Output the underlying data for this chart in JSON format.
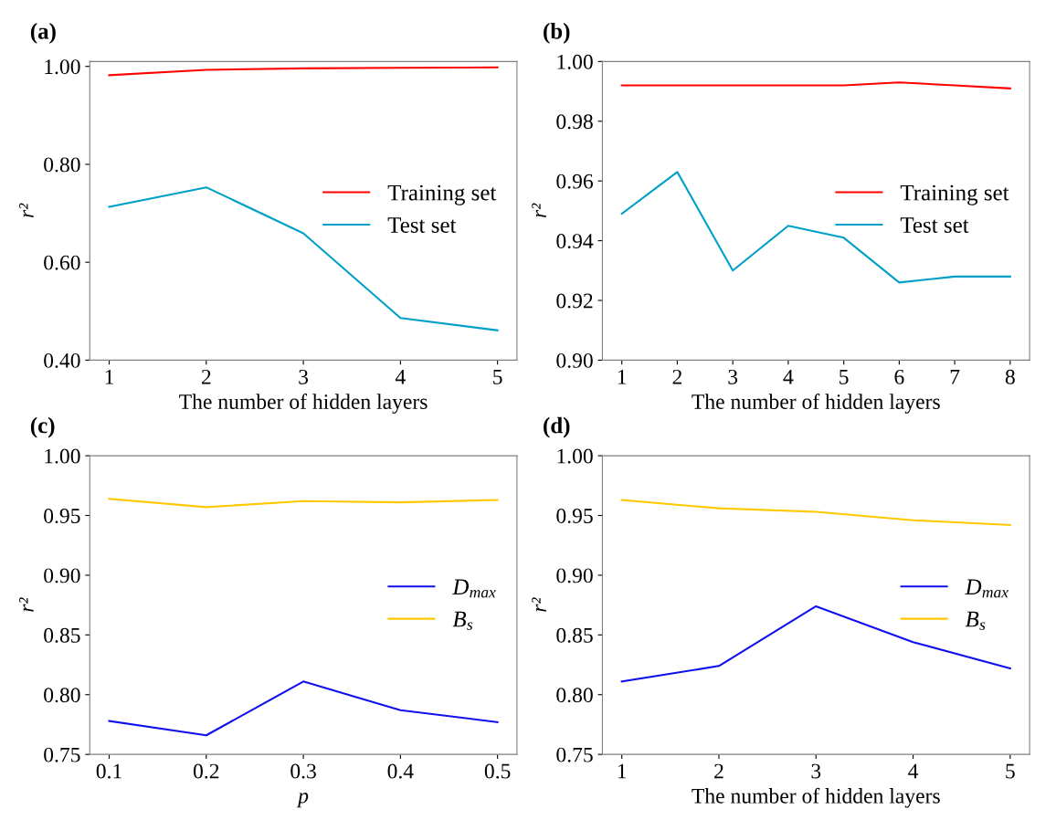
{
  "chart_data": [
    {
      "type": "line",
      "title": "(a)",
      "xlabel": "The number of hidden layers",
      "ylabel": "r²",
      "x": [
        1,
        2,
        3,
        4,
        5
      ],
      "series": [
        {
          "name": "Training set",
          "color": "#ff0000",
          "values": [
            0.982,
            0.993,
            0.996,
            0.997,
            0.998
          ]
        },
        {
          "name": "Test set",
          "color": "#00a0c8",
          "values": [
            0.713,
            0.753,
            0.659,
            0.486,
            0.461
          ]
        }
      ],
      "xlim": [
        0.8,
        5.2
      ],
      "xticks": [
        1,
        2,
        3,
        4,
        5
      ],
      "ylim": [
        0.4,
        1.01
      ],
      "yticks": [
        {
          "value": 0.4,
          "label": "0.40"
        },
        {
          "value": 0.6,
          "label": "0.60"
        },
        {
          "value": 0.8,
          "label": "0.80"
        },
        {
          "value": 1.0,
          "label": "1.00"
        }
      ],
      "legend": "right",
      "grid": false,
      "marker": "none",
      "line_style": "solid"
    },
    {
      "type": "line",
      "title": "(b)",
      "xlabel": "The number of hidden layers",
      "ylabel": "r²",
      "x": [
        1,
        2,
        3,
        4,
        5,
        6,
        7,
        8
      ],
      "series": [
        {
          "name": "Training set",
          "color": "#ff0000",
          "values": [
            0.992,
            0.992,
            0.992,
            0.992,
            0.992,
            0.993,
            0.992,
            0.991
          ]
        },
        {
          "name": "Test set",
          "color": "#00a0c8",
          "values": [
            0.949,
            0.963,
            0.93,
            0.945,
            0.941,
            0.926,
            0.928,
            0.928
          ]
        }
      ],
      "xlim": [
        0.65,
        8.35
      ],
      "xticks": [
        1,
        2,
        3,
        4,
        5,
        6,
        7,
        8
      ],
      "ylim": [
        0.9,
        1.0
      ],
      "yticks": [
        {
          "value": 0.9,
          "label": "0.90"
        },
        {
          "value": 0.92,
          "label": "0.92"
        },
        {
          "value": 0.94,
          "label": "0.94"
        },
        {
          "value": 0.96,
          "label": "0.96"
        },
        {
          "value": 0.98,
          "label": "0.98"
        },
        {
          "value": 1.0,
          "label": "1.00"
        }
      ],
      "legend": "right",
      "grid": false,
      "marker": "none",
      "line_style": "solid"
    },
    {
      "type": "line",
      "title": "(c)",
      "xlabel": "p",
      "ylabel": "r²",
      "x": [
        0.1,
        0.2,
        0.3,
        0.4,
        0.5
      ],
      "series": [
        {
          "name": "D$_{max}$",
          "color": "#1010ee",
          "values": [
            0.778,
            0.766,
            0.811,
            0.787,
            0.777
          ]
        },
        {
          "name": "B$_{s}$",
          "color": "#ffc800",
          "values": [
            0.964,
            0.957,
            0.962,
            0.961,
            0.963
          ]
        }
      ],
      "xlim": [
        0.08,
        0.52
      ],
      "xticks": [
        0.1,
        0.2,
        0.3,
        0.4,
        0.5
      ],
      "ylim": [
        0.75,
        1.0
      ],
      "yticks": [
        {
          "value": 0.75,
          "label": "0.75"
        },
        {
          "value": 0.8,
          "label": "0.80"
        },
        {
          "value": 0.85,
          "label": "0.85"
        },
        {
          "value": 0.9,
          "label": "0.90"
        },
        {
          "value": 0.95,
          "label": "0.95"
        },
        {
          "value": 1.0,
          "label": "1.00"
        }
      ],
      "legend": "right",
      "grid": false,
      "marker": "none",
      "line_style": "solid"
    },
    {
      "type": "line",
      "title": "(d)",
      "xlabel": "The number of hidden layers",
      "ylabel": "r²",
      "x": [
        1,
        2,
        3,
        4,
        5
      ],
      "series": [
        {
          "name": "D$_{max}$",
          "color": "#1010ee",
          "values": [
            0.811,
            0.824,
            0.874,
            0.844,
            0.822
          ]
        },
        {
          "name": "B$_{s}$",
          "color": "#ffc800",
          "values": [
            0.963,
            0.956,
            0.953,
            0.946,
            0.942
          ]
        }
      ],
      "xlim": [
        0.8,
        5.2
      ],
      "xticks": [
        1,
        2,
        3,
        4,
        5
      ],
      "ylim": [
        0.75,
        1.0
      ],
      "yticks": [
        {
          "value": 0.75,
          "label": "0.75"
        },
        {
          "value": 0.8,
          "label": "0.80"
        },
        {
          "value": 0.85,
          "label": "0.85"
        },
        {
          "value": 0.9,
          "label": "0.90"
        },
        {
          "value": 0.95,
          "label": "0.95"
        },
        {
          "value": 1.0,
          "label": "1.00"
        }
      ],
      "legend": "right",
      "grid": false,
      "marker": "none",
      "line_style": "solid"
    }
  ]
}
